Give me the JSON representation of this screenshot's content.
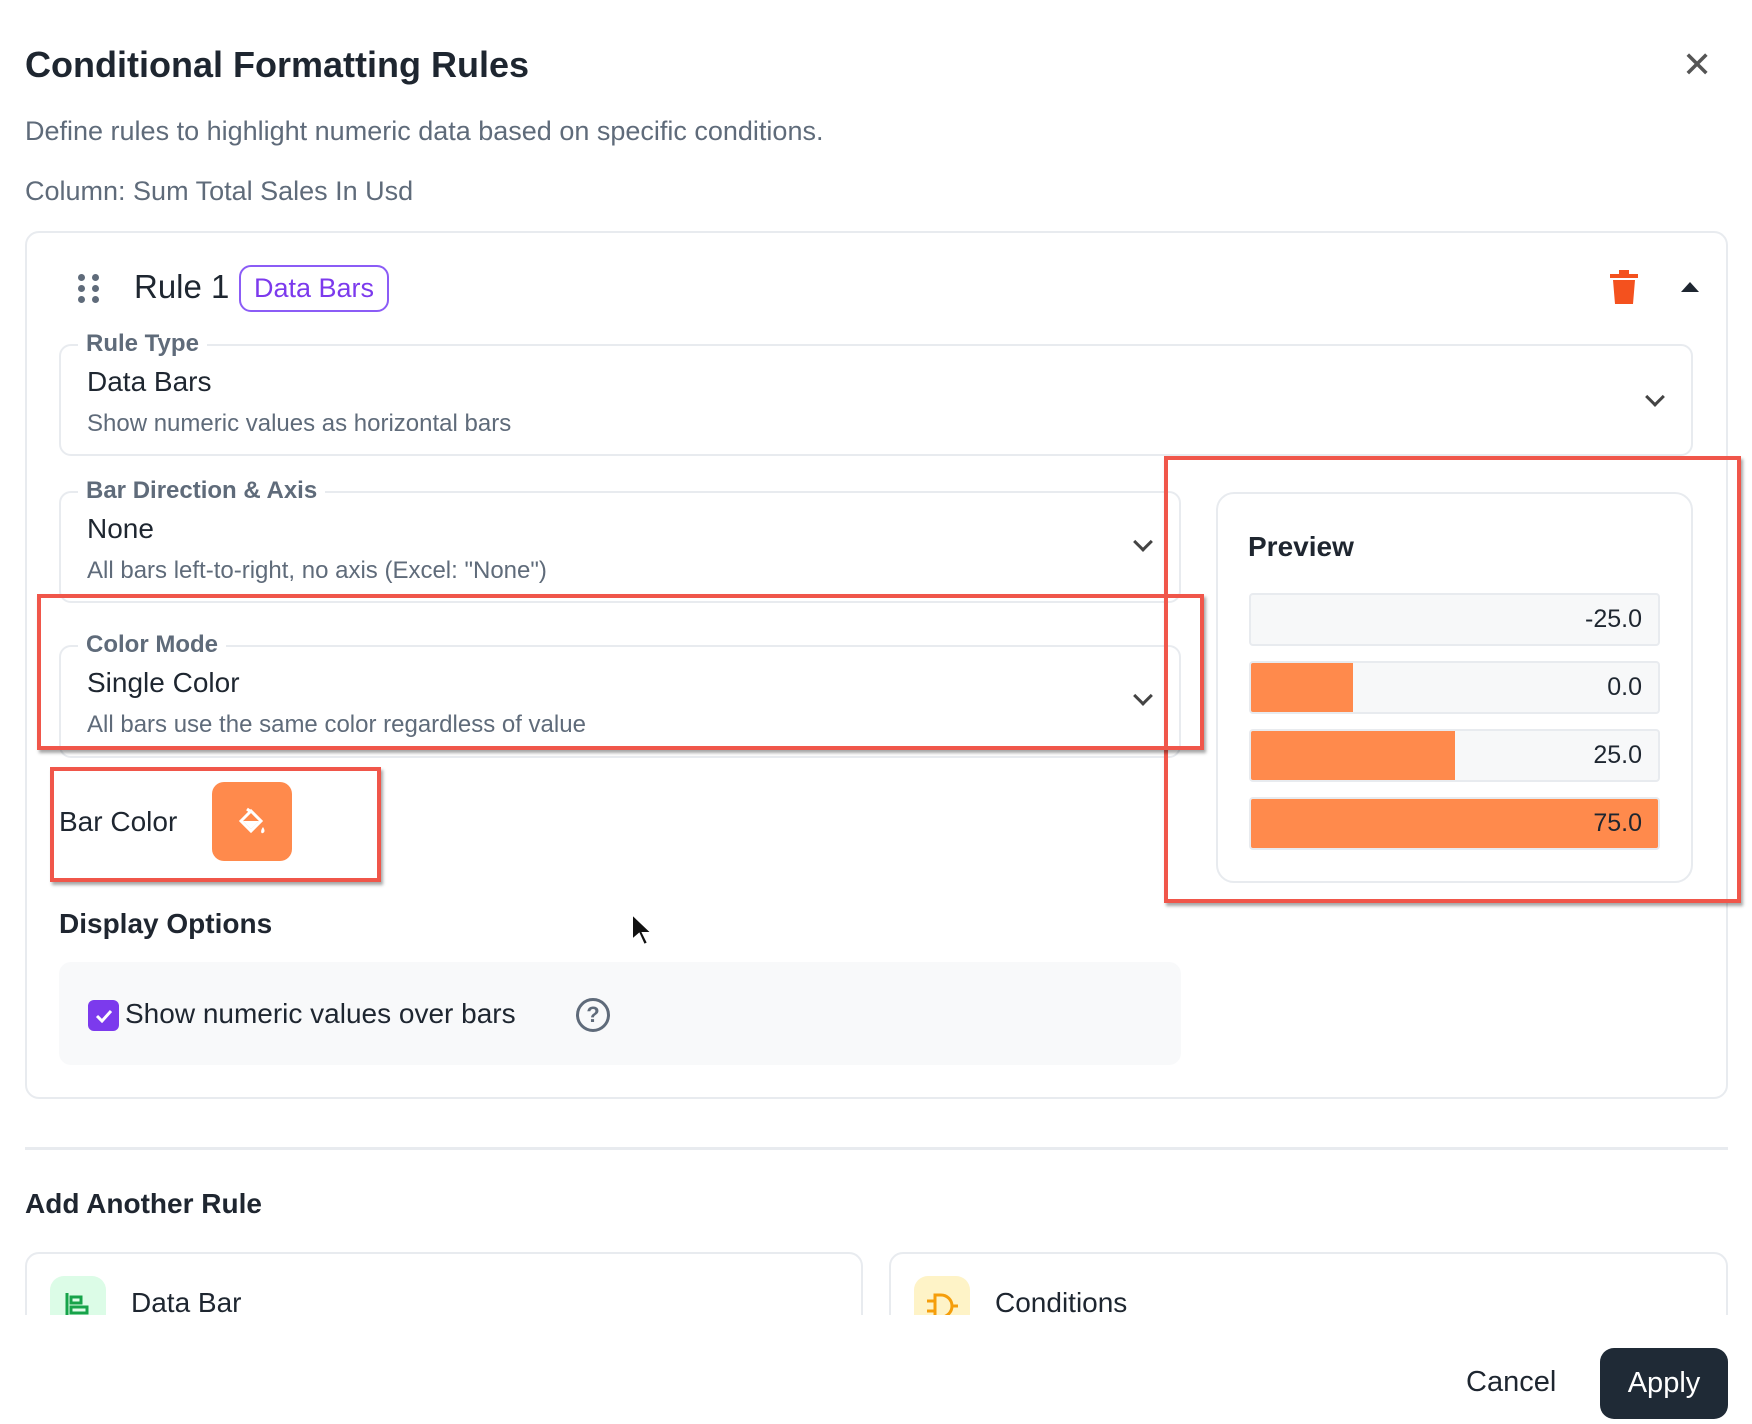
{
  "dialog": {
    "title": "Conditional Formatting Rules",
    "subtitle": "Define rules to highlight numeric data based on specific conditions.",
    "column_label": "Column: Sum Total Sales In Usd"
  },
  "rule": {
    "name": "Rule 1",
    "badge": "Data Bars",
    "rule_type": {
      "label": "Rule Type",
      "value": "Data Bars",
      "description": "Show numeric values as horizontal bars"
    },
    "bar_direction": {
      "label": "Bar Direction & Axis",
      "value": "None",
      "description": "All bars left-to-right, no axis (Excel: \"None\")"
    },
    "color_mode": {
      "label": "Color Mode",
      "value": "Single Color",
      "description": "All bars use the same color regardless of value"
    },
    "bar_color": {
      "label": "Bar Color",
      "color": "#ff8a4c"
    },
    "display_options": {
      "title": "Display Options",
      "show_values_label": "Show numeric values over bars",
      "show_values_checked": true
    },
    "preview": {
      "title": "Preview",
      "range": [
        -25,
        75
      ],
      "rows": [
        {
          "label": "-25.0",
          "value": -25
        },
        {
          "label": "0.0",
          "value": 0
        },
        {
          "label": "25.0",
          "value": 25
        },
        {
          "label": "75.0",
          "value": 75
        }
      ]
    }
  },
  "add_rule": {
    "title": "Add Another Rule",
    "options": [
      {
        "label": "Data Bar",
        "icon": "data-bar-icon"
      },
      {
        "label": "Conditions",
        "icon": "logic-gate-icon"
      }
    ]
  },
  "footer": {
    "cancel": "Cancel",
    "apply": "Apply"
  },
  "colors": {
    "accent": "#7c3aed",
    "bar": "#ff8a4c",
    "danger": "#f4511e"
  }
}
